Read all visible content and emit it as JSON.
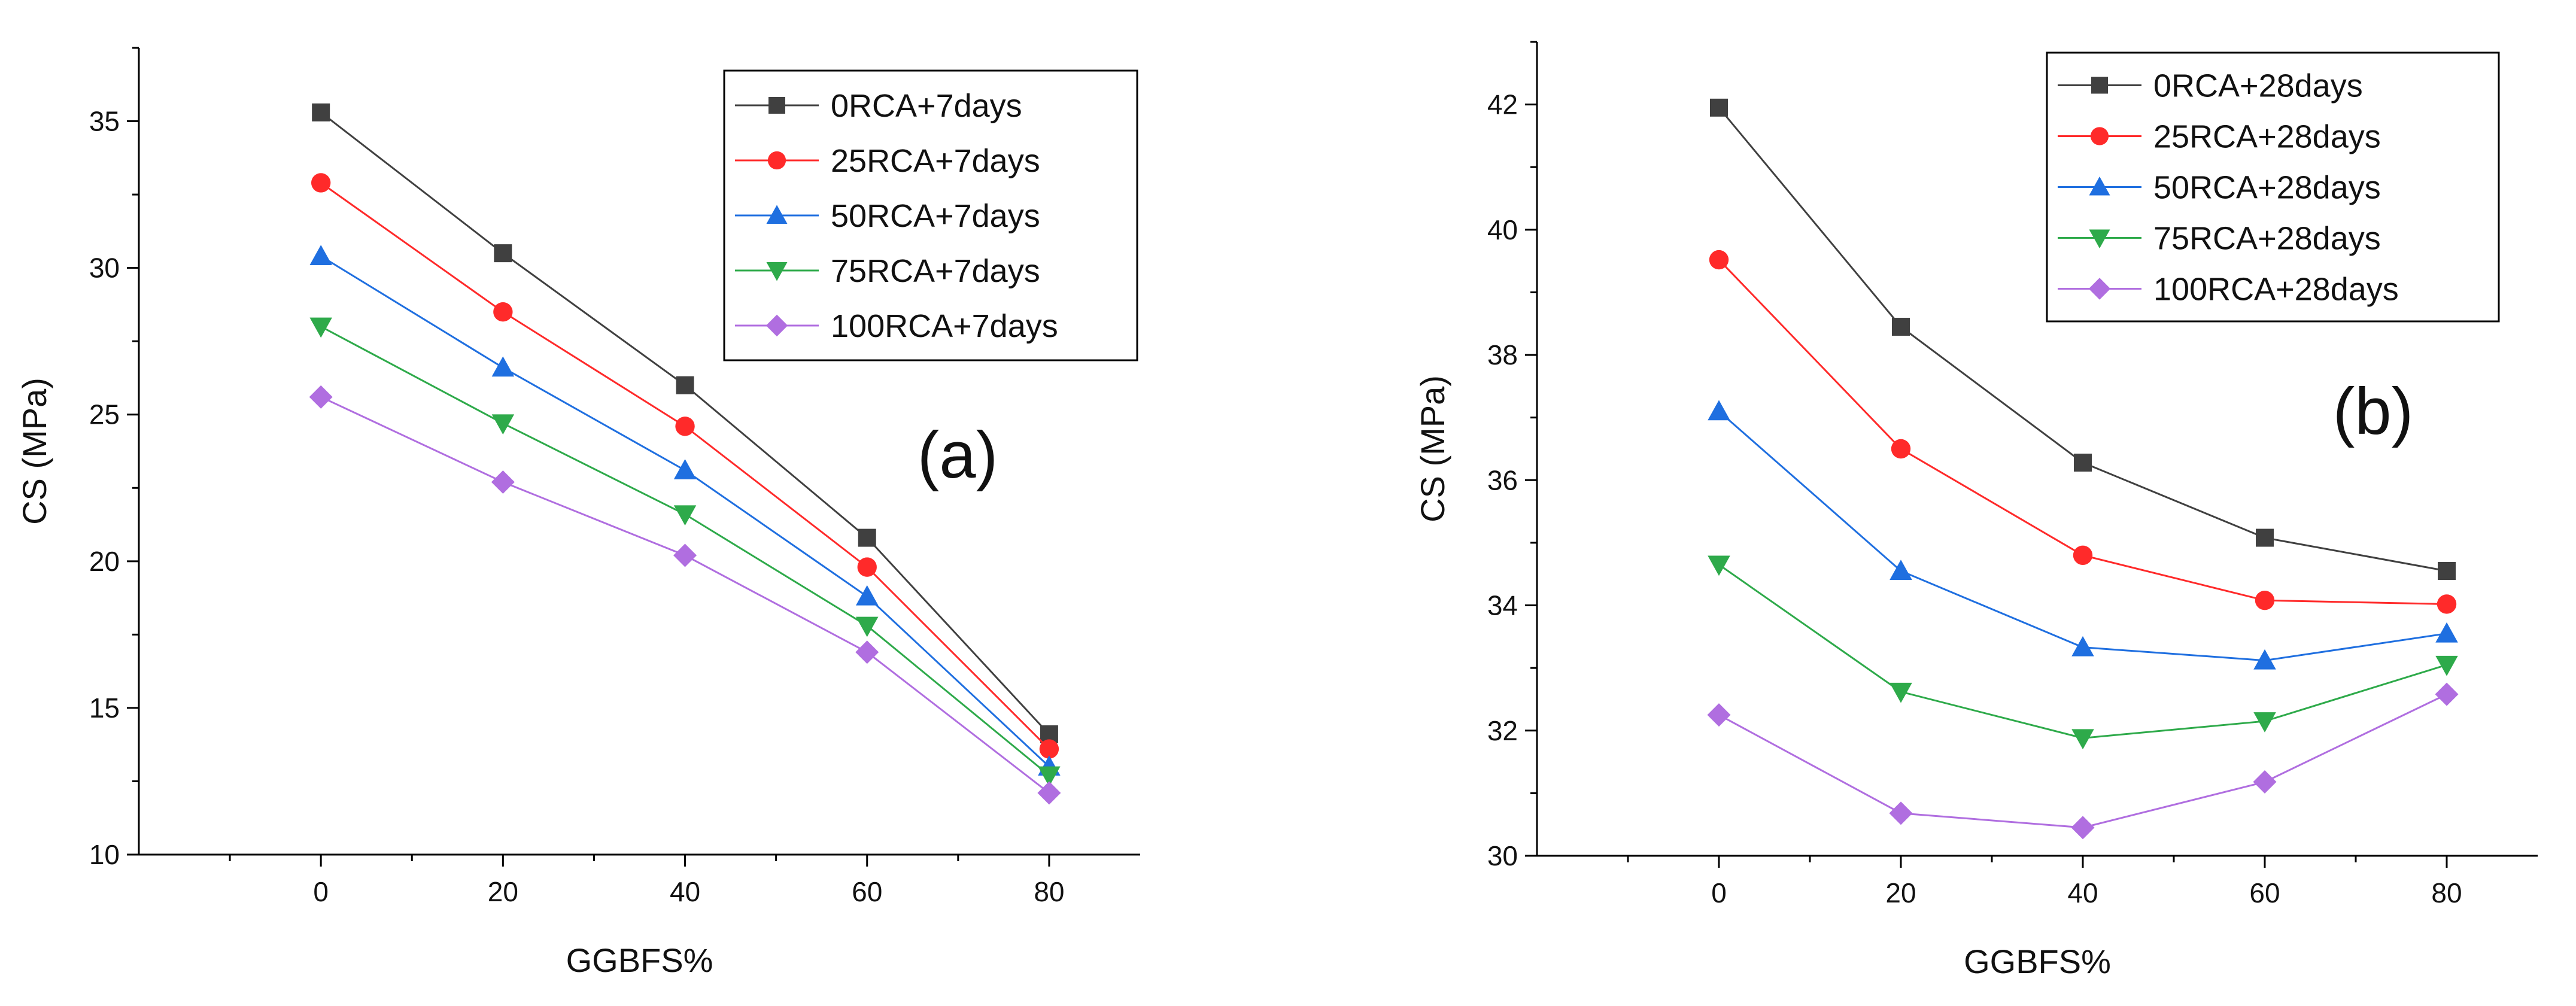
{
  "chart_data": [
    {
      "type": "line",
      "panel_label": "(a)",
      "xlabel": "GGBFS%",
      "ylabel": "CS (MPa)",
      "x": [
        0,
        20,
        40,
        60,
        80
      ],
      "xlim": [
        -20,
        90
      ],
      "ylim": [
        10,
        37.5
      ],
      "xticks": [
        0,
        20,
        40,
        60,
        80
      ],
      "yticks": [
        10,
        15,
        20,
        25,
        30,
        35
      ],
      "legend_position": "top-right",
      "series": [
        {
          "name": "0RCA+7days",
          "color": "#404040",
          "marker": "square",
          "values": [
            35.3,
            30.5,
            26.0,
            20.8,
            14.1
          ]
        },
        {
          "name": "25RCA+7days",
          "color": "#ff2a2a",
          "marker": "circle",
          "values": [
            32.9,
            28.5,
            24.6,
            19.8,
            13.6
          ]
        },
        {
          "name": "50RCA+7days",
          "color": "#1f6fe0",
          "marker": "triangle-up",
          "values": [
            30.4,
            26.6,
            23.1,
            18.8,
            13.0
          ]
        },
        {
          "name": "75RCA+7days",
          "color": "#2eaa4a",
          "marker": "triangle-down",
          "values": [
            28.0,
            24.7,
            21.6,
            17.8,
            12.7
          ]
        },
        {
          "name": "100RCA+7days",
          "color": "#b06ee0",
          "marker": "diamond",
          "values": [
            25.6,
            22.7,
            20.2,
            16.9,
            12.1
          ]
        }
      ]
    },
    {
      "type": "line",
      "panel_label": "(b)",
      "xlabel": "GGBFS%",
      "ylabel": "CS (MPa)",
      "x": [
        0,
        20,
        40,
        60,
        80
      ],
      "xlim": [
        -20,
        90
      ],
      "ylim": [
        30,
        43
      ],
      "xticks": [
        0,
        20,
        40,
        60,
        80
      ],
      "yticks": [
        30,
        32,
        34,
        36,
        38,
        40,
        42
      ],
      "legend_position": "top-right",
      "series": [
        {
          "name": "0RCA+28days",
          "color": "#404040",
          "marker": "square",
          "values": [
            41.95,
            38.45,
            36.28,
            35.08,
            34.55
          ]
        },
        {
          "name": "25RCA+28days",
          "color": "#ff2a2a",
          "marker": "circle",
          "values": [
            39.52,
            36.5,
            34.8,
            34.08,
            34.02
          ]
        },
        {
          "name": "50RCA+28days",
          "color": "#1f6fe0",
          "marker": "triangle-up",
          "values": [
            37.1,
            34.55,
            33.33,
            33.12,
            33.55
          ]
        },
        {
          "name": "75RCA+28days",
          "color": "#2eaa4a",
          "marker": "triangle-down",
          "values": [
            34.65,
            32.62,
            31.88,
            32.15,
            33.05
          ]
        },
        {
          "name": "100RCA+28days",
          "color": "#b06ee0",
          "marker": "diamond",
          "values": [
            32.25,
            30.68,
            30.45,
            31.18,
            32.58
          ]
        }
      ]
    }
  ]
}
